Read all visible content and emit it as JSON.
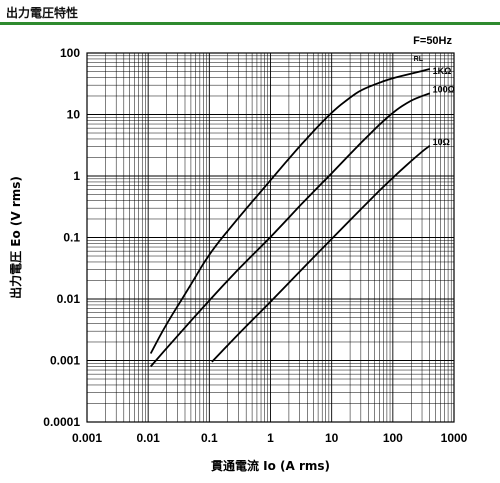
{
  "header": {
    "title": "出力電圧特性"
  },
  "chart_data": {
    "type": "line",
    "title": "",
    "xlabel": "貫通電流 Io (A rms)",
    "ylabel": "出力電圧 Eo (V rms)",
    "x_scale": "log",
    "y_scale": "log",
    "xlim": [
      0.001,
      1000
    ],
    "ylim": [
      0.0001,
      100
    ],
    "x_ticks": [
      "0.001",
      "0.01",
      "0.1",
      "1",
      "10",
      "100",
      "1000"
    ],
    "y_ticks": [
      "100",
      "10",
      "1",
      "0.1",
      "0.01",
      "0.001",
      "0.0001"
    ],
    "grid": true,
    "annotation": "F=50Hz",
    "legend_title": "RL",
    "series": [
      {
        "name": "1KΩ",
        "x": [
          0.011,
          0.02,
          0.05,
          0.1,
          0.3,
          1,
          3,
          10,
          20,
          30,
          60,
          100,
          200,
          400
        ],
        "y": [
          0.0013,
          0.004,
          0.017,
          0.055,
          0.21,
          0.85,
          3.1,
          11,
          19,
          25,
          33,
          39,
          46,
          55
        ]
      },
      {
        "name": "100Ω",
        "x": [
          0.011,
          0.03,
          0.1,
          0.3,
          1,
          3,
          10,
          30,
          100,
          200,
          300,
          400
        ],
        "y": [
          0.0008,
          0.0025,
          0.0095,
          0.031,
          0.1,
          0.33,
          1.1,
          3.5,
          11,
          17,
          20,
          22
        ]
      },
      {
        "name": "10Ω",
        "x": [
          0.11,
          0.3,
          1,
          3,
          10,
          30,
          100,
          300,
          400
        ],
        "y": [
          0.00095,
          0.0027,
          0.009,
          0.028,
          0.095,
          0.29,
          0.95,
          2.5,
          3.1
        ]
      }
    ]
  }
}
